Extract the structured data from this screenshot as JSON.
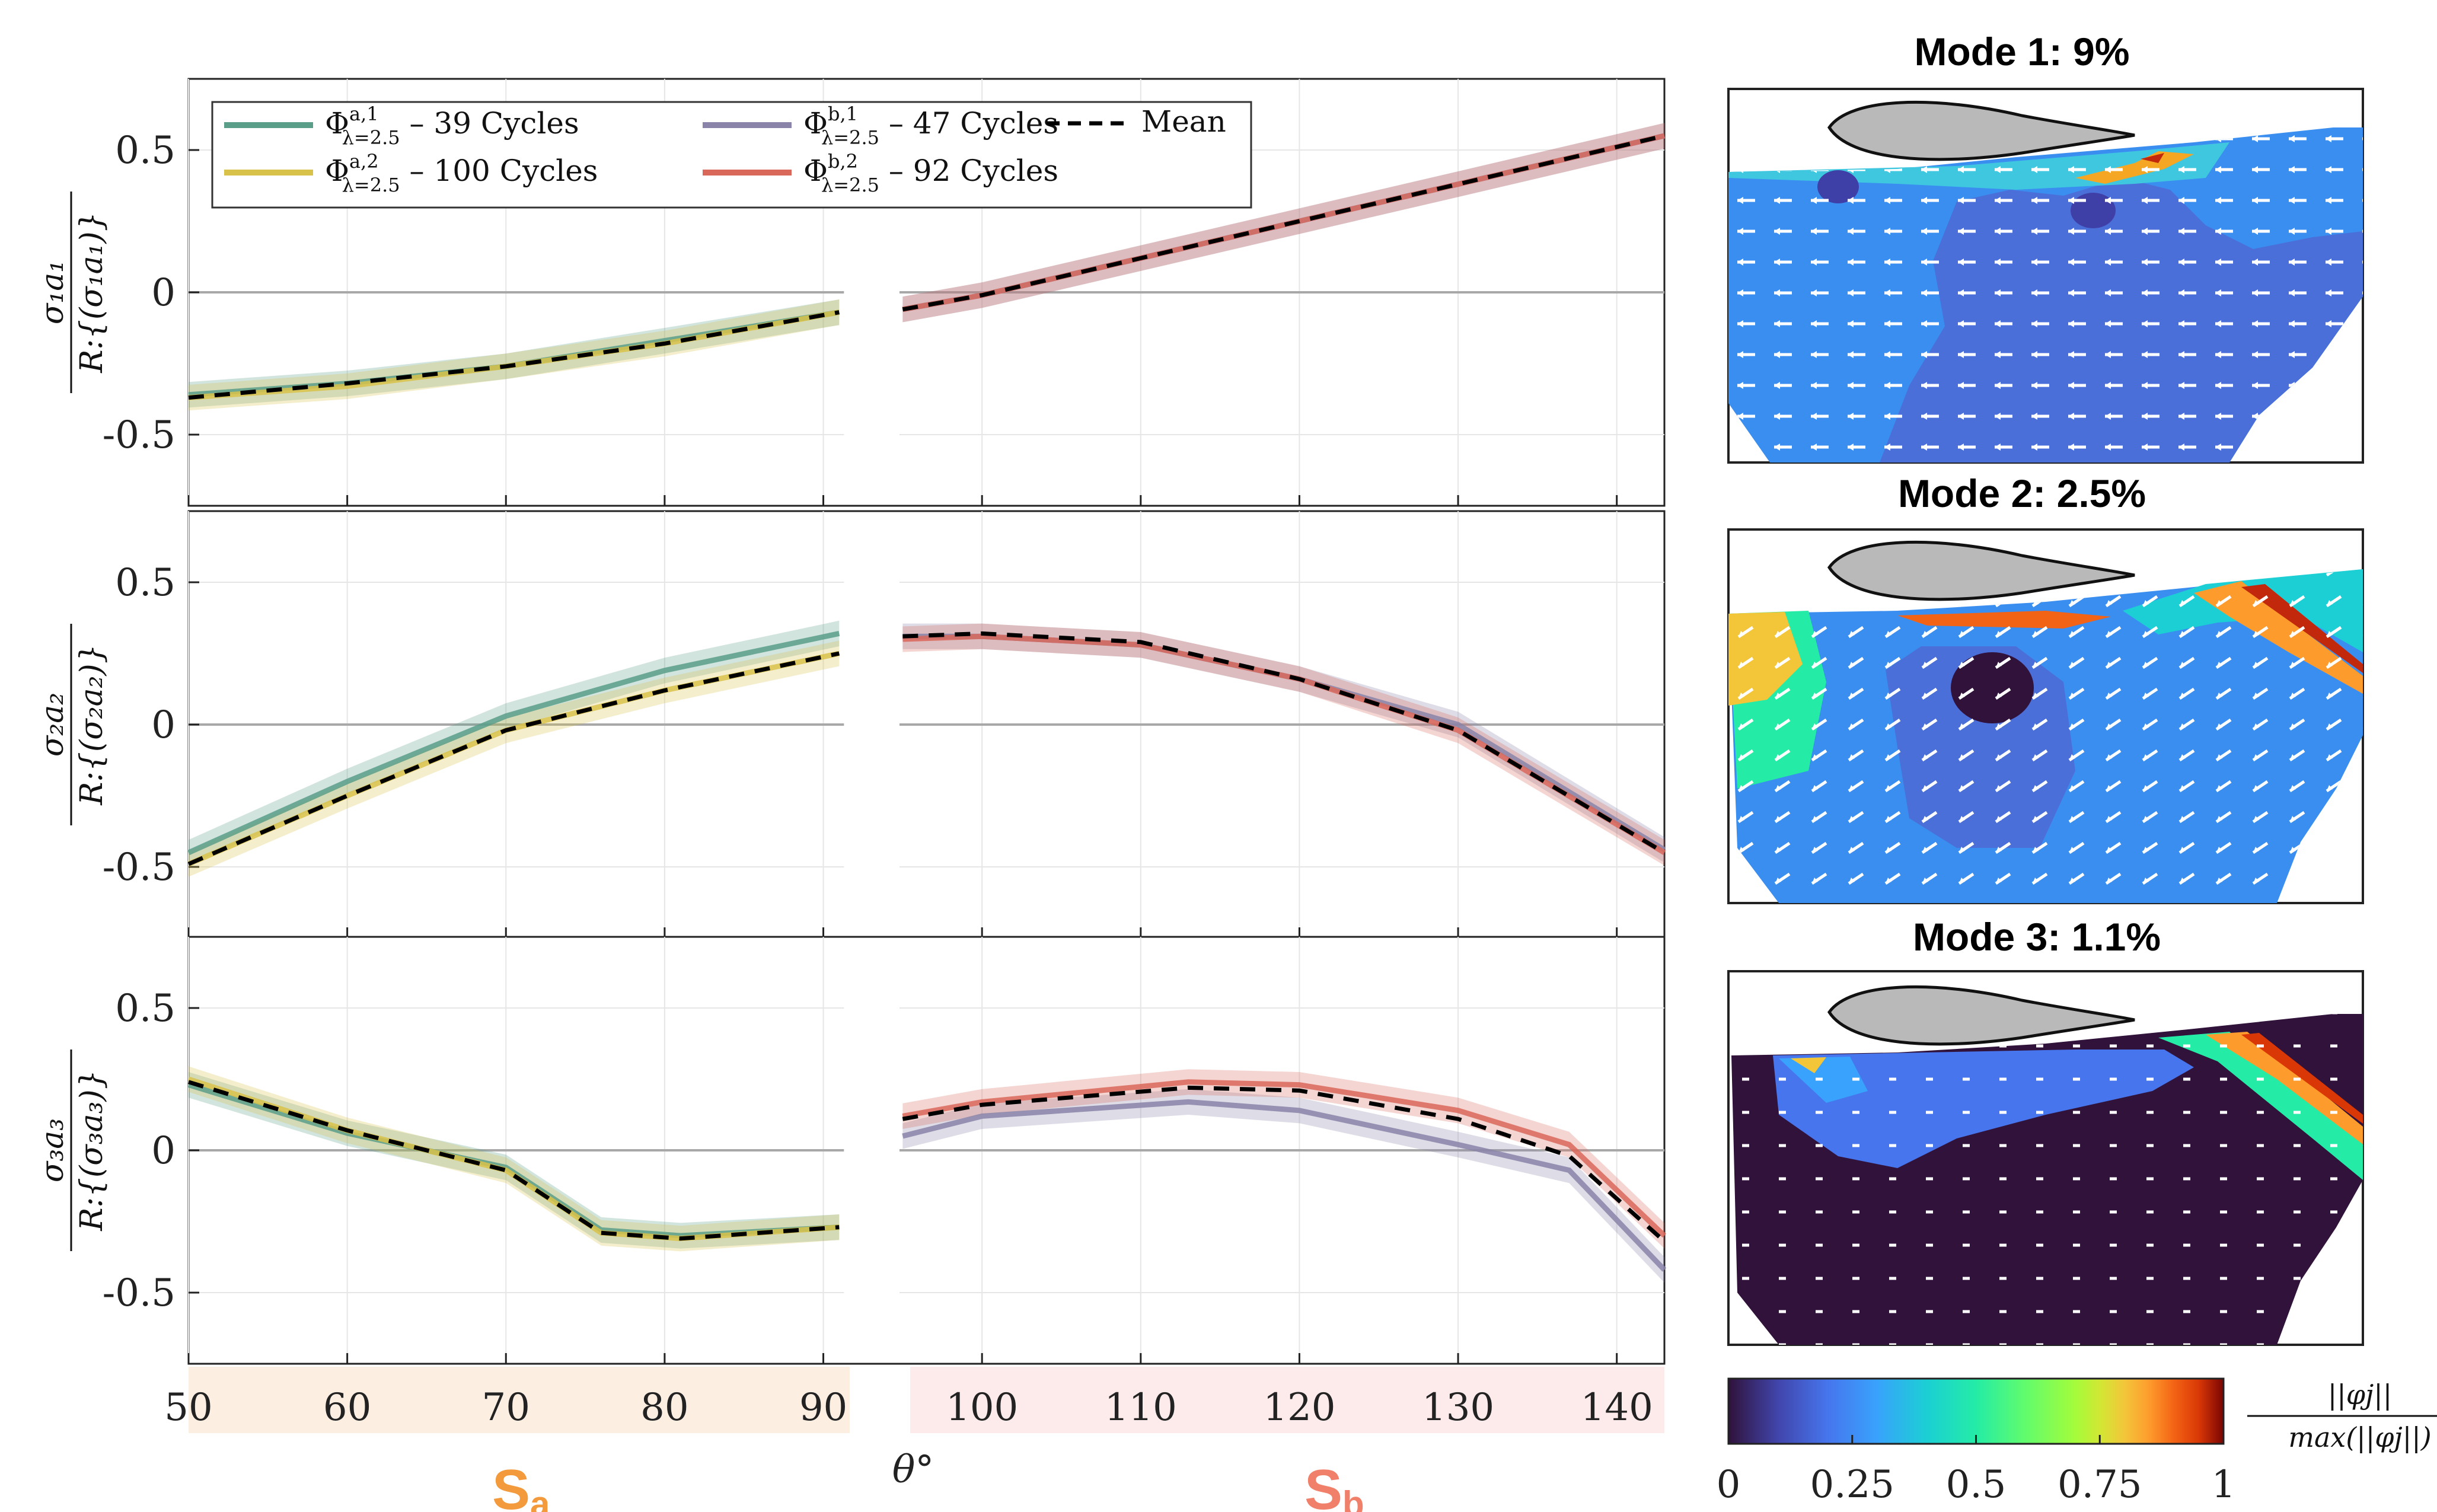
{
  "chart_data": [
    {
      "type": "line",
      "panel": 1,
      "ylabel": "σ1a1 / R:{(σ1a1)}",
      "ylabel_num": "σ₁a₁",
      "ylabel_den": "R:{(σ₁a₁)}",
      "ylim": [
        -0.75,
        0.75
      ],
      "yticks": [
        -0.5,
        0,
        0.5
      ],
      "ytick_labels": [
        "-0.5",
        "0",
        "0.5"
      ],
      "series": [
        {
          "name": "a1",
          "color": "#5a9e8a",
          "x": [
            50,
            60,
            70,
            80,
            91
          ],
          "values": [
            -0.36,
            -0.32,
            -0.26,
            -0.17,
            -0.07
          ]
        },
        {
          "name": "a2",
          "color": "#d9c24a",
          "x": [
            50,
            60,
            70,
            80,
            91
          ],
          "values": [
            -0.37,
            -0.33,
            -0.26,
            -0.18,
            -0.07
          ]
        },
        {
          "name": "b1",
          "color": "#8a84a8",
          "x": [
            95,
            100,
            110,
            120,
            130,
            143
          ],
          "values": [
            -0.06,
            -0.01,
            0.12,
            0.25,
            0.38,
            0.55
          ]
        },
        {
          "name": "b2",
          "color": "#d9675a",
          "x": [
            95,
            100,
            110,
            120,
            130,
            143
          ],
          "values": [
            -0.06,
            -0.01,
            0.12,
            0.25,
            0.38,
            0.55
          ]
        },
        {
          "name": "mean_a",
          "color": "#000000",
          "dashed": true,
          "x": [
            50,
            60,
            70,
            80,
            91
          ],
          "values": [
            -0.37,
            -0.32,
            -0.26,
            -0.18,
            -0.07
          ]
        },
        {
          "name": "mean_b",
          "color": "#000000",
          "dashed": true,
          "x": [
            95,
            100,
            110,
            120,
            130,
            143
          ],
          "values": [
            -0.06,
            -0.01,
            0.12,
            0.25,
            0.38,
            0.55
          ]
        }
      ]
    },
    {
      "type": "line",
      "panel": 2,
      "ylabel": "σ2a2 / R:{(σ2a2)}",
      "ylabel_num": "σ₂a₂",
      "ylabel_den": "R:{(σ₂a₂)}",
      "ylim": [
        -0.75,
        0.75
      ],
      "yticks": [
        -0.5,
        0,
        0.5
      ],
      "ytick_labels": [
        "-0.5",
        "0",
        "0.5"
      ],
      "series": [
        {
          "name": "a1",
          "color": "#5a9e8a",
          "x": [
            50,
            60,
            70,
            80,
            91
          ],
          "values": [
            -0.45,
            -0.2,
            0.03,
            0.19,
            0.32
          ]
        },
        {
          "name": "a2",
          "color": "#d9c24a",
          "x": [
            50,
            60,
            70,
            80,
            91
          ],
          "values": [
            -0.49,
            -0.25,
            -0.02,
            0.12,
            0.25
          ]
        },
        {
          "name": "b1",
          "color": "#8a84a8",
          "x": [
            95,
            100,
            110,
            120,
            130,
            143
          ],
          "values": [
            0.31,
            0.31,
            0.28,
            0.16,
            0.0,
            -0.44
          ]
        },
        {
          "name": "b2",
          "color": "#d9675a",
          "x": [
            95,
            100,
            110,
            120,
            130,
            143
          ],
          "values": [
            0.3,
            0.31,
            0.28,
            0.16,
            -0.02,
            -0.45
          ]
        },
        {
          "name": "mean_a",
          "color": "#000000",
          "dashed": true,
          "x": [
            50,
            60,
            70,
            80,
            91
          ],
          "values": [
            -0.49,
            -0.25,
            -0.02,
            0.12,
            0.25
          ]
        },
        {
          "name": "mean_b",
          "color": "#000000",
          "dashed": true,
          "x": [
            95,
            100,
            110,
            120,
            130,
            143
          ],
          "values": [
            0.31,
            0.32,
            0.29,
            0.16,
            -0.02,
            -0.45
          ]
        }
      ]
    },
    {
      "type": "line",
      "panel": 3,
      "ylabel": "σ3a3 / R:{(σ3a3)}",
      "ylabel_num": "σ₃a₃",
      "ylabel_den": "R:{(σ₃a₃)}",
      "ylim": [
        -0.75,
        0.75
      ],
      "yticks": [
        -0.5,
        0,
        0.5
      ],
      "ytick_labels": [
        "-0.5",
        "0",
        "0.5"
      ],
      "xlim": [
        50,
        143
      ],
      "xticks": [
        50,
        60,
        70,
        80,
        90,
        100,
        110,
        120,
        130,
        140
      ],
      "xlabel": "θ°",
      "series": [
        {
          "name": "a1",
          "color": "#5a9e8a",
          "x": [
            50,
            60,
            70,
            76,
            81,
            91
          ],
          "values": [
            0.23,
            0.06,
            -0.06,
            -0.28,
            -0.3,
            -0.27
          ]
        },
        {
          "name": "a2",
          "color": "#d9c24a",
          "x": [
            50,
            60,
            70,
            76,
            81,
            91
          ],
          "values": [
            0.25,
            0.07,
            -0.07,
            -0.29,
            -0.31,
            -0.27
          ]
        },
        {
          "name": "b1",
          "color": "#8a84a8",
          "x": [
            95,
            100,
            113,
            120,
            130,
            137,
            143
          ],
          "values": [
            0.05,
            0.12,
            0.17,
            0.14,
            0.02,
            -0.07,
            -0.42
          ]
        },
        {
          "name": "b2",
          "color": "#d9675a",
          "x": [
            95,
            100,
            113,
            120,
            130,
            137,
            143
          ],
          "values": [
            0.12,
            0.17,
            0.24,
            0.23,
            0.14,
            0.02,
            -0.3
          ]
        },
        {
          "name": "mean_a",
          "color": "#000000",
          "dashed": true,
          "x": [
            50,
            60,
            70,
            76,
            81,
            91
          ],
          "values": [
            0.24,
            0.07,
            -0.07,
            -0.29,
            -0.31,
            -0.27
          ]
        },
        {
          "name": "mean_b",
          "color": "#000000",
          "dashed": true,
          "x": [
            95,
            100,
            113,
            120,
            130,
            137,
            143
          ],
          "values": [
            0.11,
            0.16,
            0.22,
            0.21,
            0.11,
            -0.02,
            -0.32
          ]
        }
      ]
    }
  ],
  "legend": {
    "entries": [
      {
        "label": "Φ a,1 λ=2.5 – 39 Cycles",
        "sym": "Φ",
        "sup": "a,1",
        "sub": "λ=2.5",
        "rest": " – 39 Cycles",
        "color": "#5a9e8a"
      },
      {
        "label": "Φ a,2 λ=2.5 – 100 Cycles",
        "sym": "Φ",
        "sup": "a,2",
        "sub": "λ=2.5",
        "rest": " – 100 Cycles",
        "color": "#d9c24a"
      },
      {
        "label": "Φ b,1 λ=2.5 – 47 Cycles",
        "sym": "Φ",
        "sup": "b,1",
        "sub": "λ=2.5",
        "rest": " – 47 Cycles",
        "color": "#8a84a8"
      },
      {
        "label": "Φ b,2 λ=2.5 – 92 Cycles",
        "sym": "Φ",
        "sup": "b,2",
        "sub": "λ=2.5",
        "rest": " – 92 Cycles",
        "color": "#d9675a"
      },
      {
        "label": "Mean",
        "sym": "",
        "sup": "",
        "sub": "",
        "rest": "Mean",
        "color": "#000000",
        "dashed": true
      }
    ]
  },
  "x_axis": {
    "tick_labels": [
      "50",
      "60",
      "70",
      "80",
      "90",
      "100",
      "110",
      "120",
      "130",
      "140"
    ],
    "xlabel": "θ°"
  },
  "regions": {
    "a": {
      "label": "S",
      "sub": "a",
      "color": "#f39a3c",
      "band": "#fdeee2"
    },
    "b": {
      "label": "S",
      "sub": "b",
      "color": "#f0806a",
      "band": "#fdeaea"
    }
  },
  "modes": [
    {
      "title": "Mode 1: 9%"
    },
    {
      "title": "Mode 2: 2.5%"
    },
    {
      "title": "Mode 3: 1.1%"
    }
  ],
  "colorbar": {
    "ticks": [
      0,
      0.25,
      0.5,
      0.75,
      1
    ],
    "tick_labels": [
      "0",
      "0.25",
      "0.5",
      "0.75",
      "1"
    ],
    "label_num": "||φj||",
    "label_den": "max(||φj||)"
  }
}
